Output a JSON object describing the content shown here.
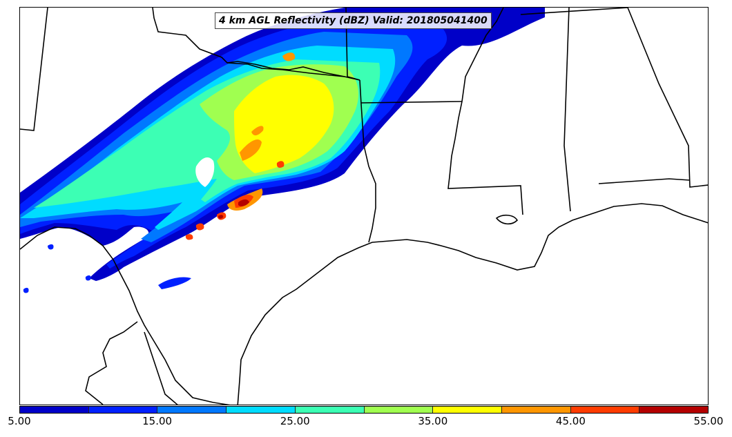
{
  "map": {
    "title": "4 km AGL Reflectivity (dBZ) Valid: 201805041400",
    "colors": {
      "border": "#000000",
      "background": "#ffffff"
    }
  },
  "colorbar": {
    "bins": [
      {
        "min": 5,
        "max": 10,
        "color": "#0000c8"
      },
      {
        "min": 10,
        "max": 15,
        "color": "#0020ff"
      },
      {
        "min": 15,
        "max": 20,
        "color": "#0078ff"
      },
      {
        "min": 20,
        "max": 25,
        "color": "#00dcff"
      },
      {
        "min": 25,
        "max": 30,
        "color": "#3cffb4"
      },
      {
        "min": 30,
        "max": 35,
        "color": "#a0ff50"
      },
      {
        "min": 35,
        "max": 40,
        "color": "#ffff00"
      },
      {
        "min": 40,
        "max": 45,
        "color": "#ff9600"
      },
      {
        "min": 45,
        "max": 50,
        "color": "#ff3c00"
      },
      {
        "min": 50,
        "max": 55,
        "color": "#b40000"
      }
    ],
    "tick_labels": [
      "5.00",
      "15.00",
      "25.00",
      "35.00",
      "45.00",
      "55.00"
    ]
  }
}
